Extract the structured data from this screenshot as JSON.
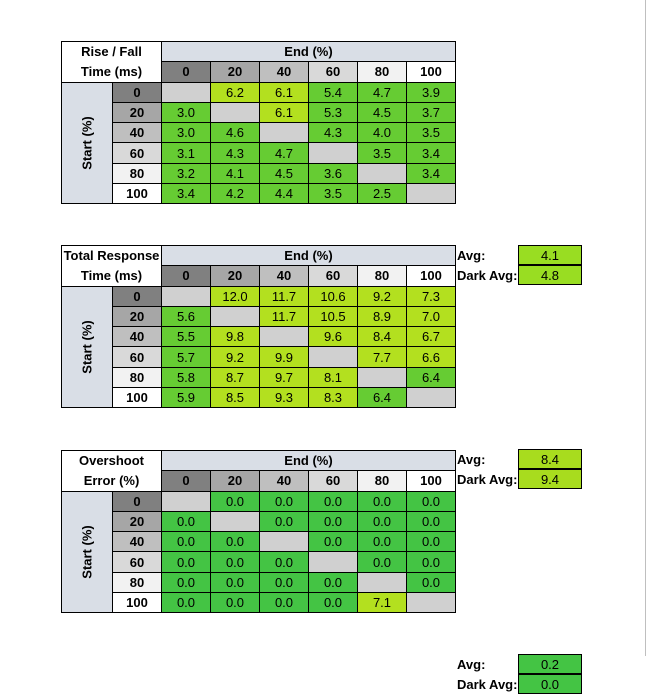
{
  "labels": {
    "end": "End (%)",
    "start": "Start (%)",
    "avg": "Avg:",
    "dark_avg": "Dark Avg:"
  },
  "columns": [
    "0",
    "20",
    "40",
    "60",
    "80",
    "100"
  ],
  "rows": [
    "0",
    "20",
    "40",
    "60",
    "80",
    "100"
  ],
  "colors": {
    "green": "#66cc33",
    "yellow_green": "#b3e01f",
    "bright_green": "#44c444",
    "empty": "#d0d0d0"
  },
  "tables": [
    {
      "title_line1": "Rise / Fall",
      "title_line2": "Time (ms)",
      "avg": "4.1",
      "dark_avg": "4.8",
      "avg_color": "#99dd22",
      "dark_avg_color": "#99dd22",
      "values": [
        [
          "",
          "6.2",
          "6.1",
          "5.4",
          "4.7",
          "3.9"
        ],
        [
          "3.0",
          "",
          "6.1",
          "5.3",
          "4.5",
          "3.7"
        ],
        [
          "3.0",
          "4.6",
          "",
          "4.3",
          "4.0",
          "3.5"
        ],
        [
          "3.1",
          "4.3",
          "4.7",
          "",
          "3.5",
          "3.4"
        ],
        [
          "3.2",
          "4.1",
          "4.5",
          "3.6",
          "",
          "3.4"
        ],
        [
          "3.4",
          "4.2",
          "4.4",
          "3.5",
          "2.5",
          ""
        ]
      ],
      "cell_colors": [
        [
          "e",
          "y",
          "y",
          "g",
          "g",
          "g"
        ],
        [
          "g",
          "e",
          "y",
          "g",
          "g",
          "g"
        ],
        [
          "g",
          "g",
          "e",
          "g",
          "g",
          "g"
        ],
        [
          "g",
          "g",
          "g",
          "e",
          "g",
          "g"
        ],
        [
          "g",
          "g",
          "g",
          "g",
          "e",
          "g"
        ],
        [
          "g",
          "g",
          "g",
          "g",
          "g",
          "e"
        ]
      ]
    },
    {
      "title_line1": "Total Response",
      "title_line2": "Time (ms)",
      "avg": "8.4",
      "dark_avg": "9.4",
      "avg_color": "#a8dc1e",
      "dark_avg_color": "#a8dc1e",
      "values": [
        [
          "",
          "12.0",
          "11.7",
          "10.6",
          "9.2",
          "7.3"
        ],
        [
          "5.6",
          "",
          "11.7",
          "10.5",
          "8.9",
          "7.0"
        ],
        [
          "5.5",
          "9.8",
          "",
          "9.6",
          "8.4",
          "6.7"
        ],
        [
          "5.7",
          "9.2",
          "9.9",
          "",
          "7.7",
          "6.6"
        ],
        [
          "5.8",
          "8.7",
          "9.7",
          "8.1",
          "",
          "6.4"
        ],
        [
          "5.9",
          "8.5",
          "9.3",
          "8.3",
          "6.4",
          ""
        ]
      ],
      "cell_colors": [
        [
          "e",
          "y",
          "y",
          "y",
          "y",
          "y"
        ],
        [
          "g",
          "e",
          "y",
          "y",
          "y",
          "y"
        ],
        [
          "g",
          "y",
          "e",
          "y",
          "y",
          "y"
        ],
        [
          "g",
          "y",
          "y",
          "e",
          "y",
          "y"
        ],
        [
          "g",
          "y",
          "y",
          "y",
          "e",
          "g"
        ],
        [
          "g",
          "y",
          "y",
          "y",
          "g",
          "e"
        ]
      ]
    },
    {
      "title_line1": "Overshoot",
      "title_line2": "Error (%)",
      "avg": "0.2",
      "dark_avg": "0.0",
      "avg_color": "#44c444",
      "dark_avg_color": "#44c444",
      "values": [
        [
          "",
          "0.0",
          "0.0",
          "0.0",
          "0.0",
          "0.0"
        ],
        [
          "0.0",
          "",
          "0.0",
          "0.0",
          "0.0",
          "0.0"
        ],
        [
          "0.0",
          "0.0",
          "",
          "0.0",
          "0.0",
          "0.0"
        ],
        [
          "0.0",
          "0.0",
          "0.0",
          "",
          "0.0",
          "0.0"
        ],
        [
          "0.0",
          "0.0",
          "0.0",
          "0.0",
          "",
          "0.0"
        ],
        [
          "0.0",
          "0.0",
          "0.0",
          "0.0",
          "7.1",
          ""
        ]
      ],
      "cell_colors": [
        [
          "e",
          "b",
          "b",
          "b",
          "b",
          "b"
        ],
        [
          "b",
          "e",
          "b",
          "b",
          "b",
          "b"
        ],
        [
          "b",
          "b",
          "e",
          "b",
          "b",
          "b"
        ],
        [
          "b",
          "b",
          "b",
          "e",
          "b",
          "b"
        ],
        [
          "b",
          "b",
          "b",
          "b",
          "e",
          "b"
        ],
        [
          "b",
          "b",
          "b",
          "b",
          "y",
          "e"
        ]
      ]
    }
  ]
}
